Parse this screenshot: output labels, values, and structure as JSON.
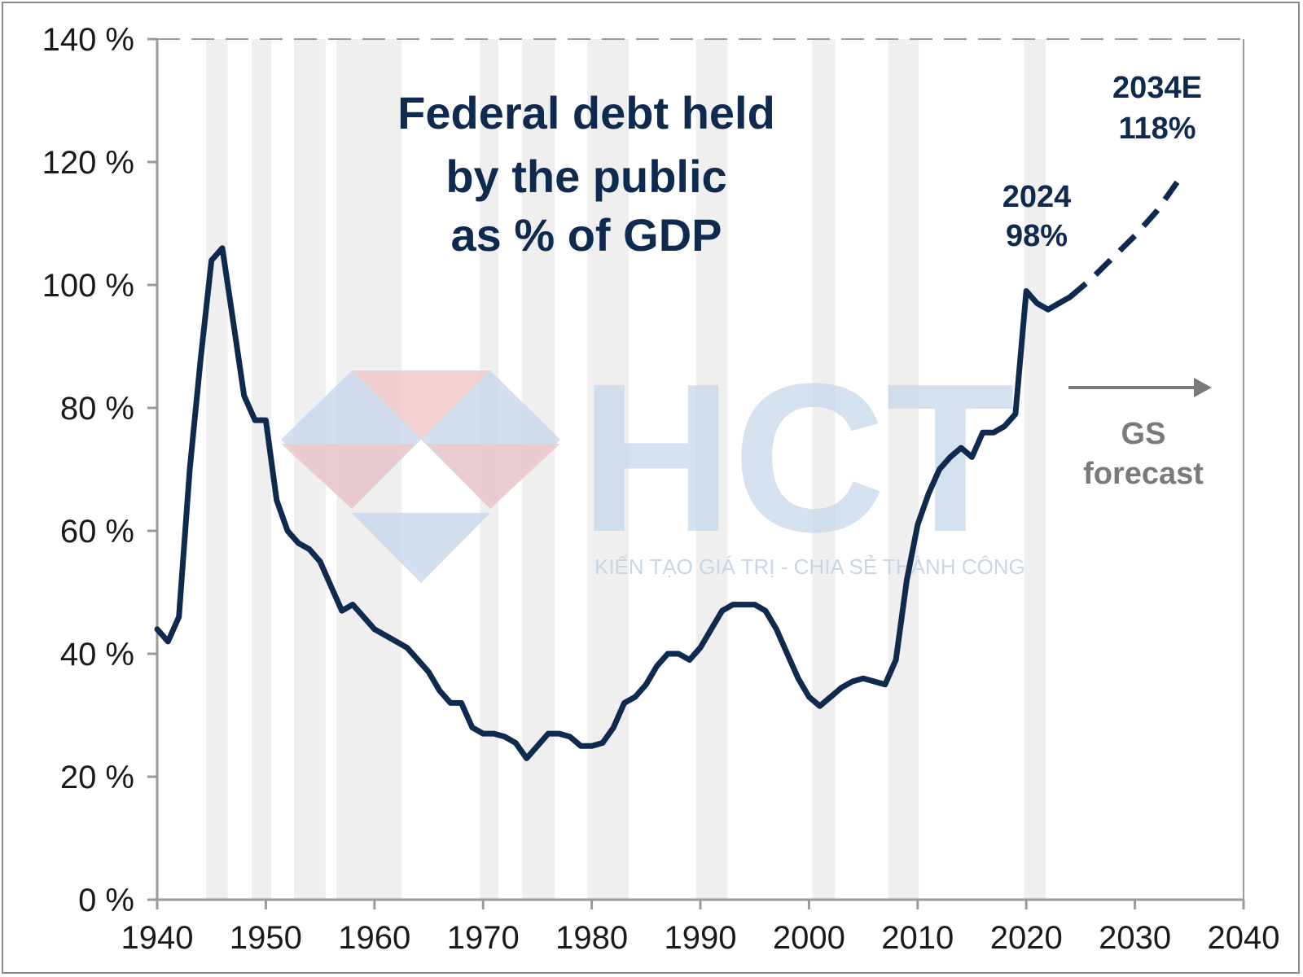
{
  "chart_data": {
    "type": "line",
    "title": [
      "Federal debt held",
      "by the public",
      "as % of GDP"
    ],
    "xlabel": "",
    "ylabel": "",
    "xlim": [
      1940,
      2040
    ],
    "ylim": [
      0,
      140
    ],
    "x_ticks": [
      "1940",
      "1950",
      "1960",
      "1970",
      "1980",
      "1990",
      "2000",
      "2010",
      "2020",
      "2030",
      "2040"
    ],
    "y_ticks": [
      "0 %",
      "20 %",
      "40 %",
      "60 %",
      "80 %",
      "100 %",
      "120 %",
      "140 %"
    ],
    "recession_bands": [
      [
        1944.5,
        1946.5
      ],
      [
        1948.7,
        1950.5
      ],
      [
        1952.6,
        1955.5
      ],
      [
        1956.5,
        1962.5
      ],
      [
        1969.7,
        1971.4
      ],
      [
        1973.6,
        1976.6
      ],
      [
        1979.6,
        1983.4
      ],
      [
        1989.6,
        1992.5
      ],
      [
        2000.3,
        2002.4
      ],
      [
        2007.3,
        2010.1
      ],
      [
        2019.8,
        2021.8
      ]
    ],
    "series": [
      {
        "style": "solid",
        "x": [
          1940,
          1941,
          1942,
          1943,
          1944,
          1945,
          1946,
          1947,
          1948,
          1949,
          1950,
          1951,
          1952,
          1953,
          1954,
          1955,
          1956,
          1957,
          1958,
          1959,
          1960,
          1961,
          1962,
          1963,
          1964,
          1965,
          1966,
          1967,
          1968,
          1969,
          1970,
          1971,
          1972,
          1973,
          1974,
          1975,
          1976,
          1977,
          1978,
          1979,
          1980,
          1981,
          1982,
          1983,
          1984,
          1985,
          1986,
          1987,
          1988,
          1989,
          1990,
          1991,
          1992,
          1993,
          1994,
          1995,
          1996,
          1997,
          1998,
          1999,
          2000,
          2001,
          2002,
          2003,
          2004,
          2005,
          2006,
          2007,
          2008,
          2009,
          2010,
          2011,
          2012,
          2013,
          2014,
          2015,
          2016,
          2017,
          2018,
          2019,
          2020,
          2021,
          2022,
          2023,
          2024
        ],
        "y": [
          44,
          42,
          46,
          70,
          88,
          104,
          106,
          94,
          82,
          78,
          78,
          65,
          60,
          58,
          57,
          55,
          51,
          47,
          48,
          46,
          44,
          43,
          42,
          41,
          39,
          37,
          34,
          32,
          32,
          28,
          27,
          27,
          26.5,
          25.5,
          23,
          25,
          27,
          27,
          26.5,
          25,
          25,
          25.5,
          28,
          32,
          33,
          35,
          38,
          40,
          40,
          39,
          41,
          44,
          47,
          48,
          48,
          48,
          47,
          44,
          40,
          36,
          33,
          31.5,
          33,
          34.5,
          35.5,
          36,
          35.5,
          35,
          39,
          52,
          61,
          66,
          70,
          72,
          73.5,
          72,
          76,
          76,
          77,
          79,
          99,
          97,
          96,
          97,
          98
        ]
      },
      {
        "style": "dashed",
        "x": [
          2024,
          2026,
          2028,
          2030,
          2032,
          2034,
          2034.6
        ],
        "y": [
          98,
          101,
          104.5,
          108,
          112,
          117,
          118
        ]
      }
    ],
    "annotations": {
      "a2024": [
        "2024",
        "98%"
      ],
      "a2034": [
        "2034E",
        "118%"
      ],
      "gs": [
        "GS",
        "forecast"
      ]
    },
    "grid": false,
    "legend": "none"
  },
  "watermark": {
    "letters": "HCT",
    "tagline": "KIẾN TẠO GIÁ TRỊ - CHIA SẺ THÀNH CÔNG",
    "colors": {
      "blue": "#c6d7ea",
      "red": "#efc5c8"
    }
  },
  "colors": {
    "line": "#0f2a4f",
    "band": "#efefef",
    "axis": "#9a9a9a",
    "arrow": "#7a7a7a"
  }
}
